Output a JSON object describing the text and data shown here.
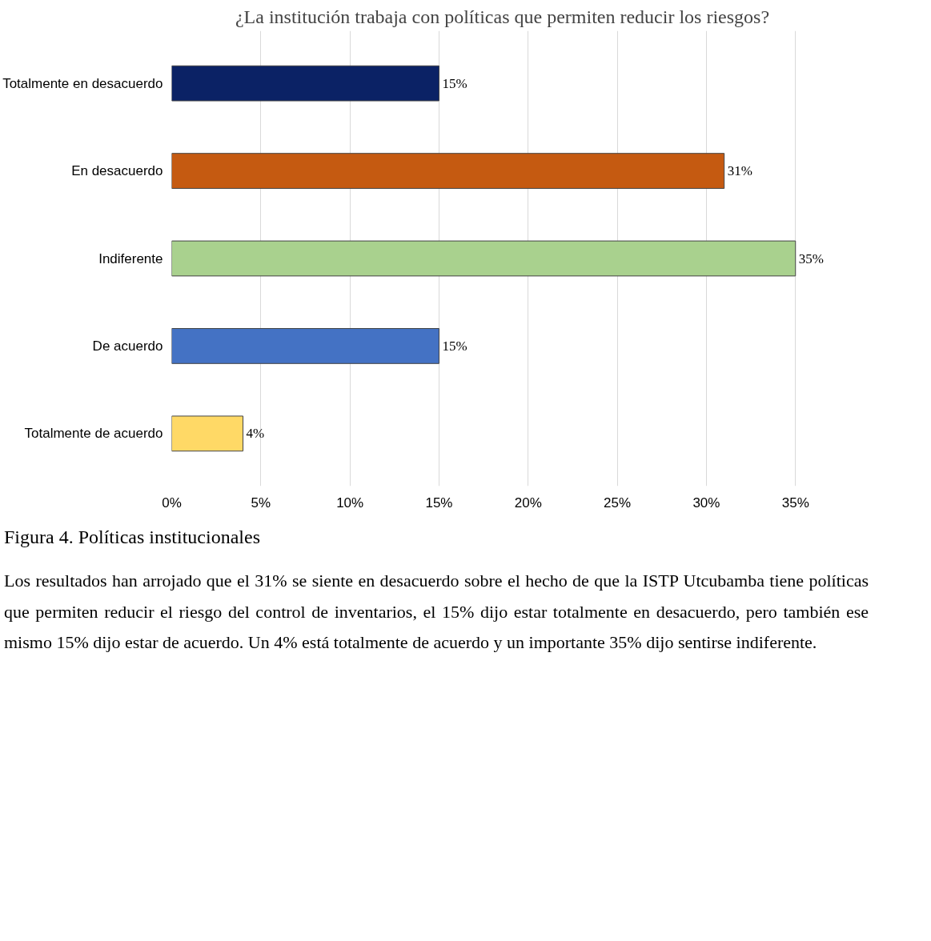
{
  "chart_data": {
    "type": "bar",
    "orientation": "horizontal",
    "title": "¿La institución trabaja con políticas que permiten reducir los riesgos?",
    "categories": [
      "Totalmente en desacuerdo",
      "En desacuerdo",
      "Indiferente",
      "De acuerdo",
      "Totalmente de acuerdo"
    ],
    "values": [
      15,
      31,
      35,
      15,
      4
    ],
    "colors": [
      "#0b2265",
      "#c55a11",
      "#a9d18e",
      "#4472c4",
      "#ffd966"
    ],
    "xlim": [
      0,
      35
    ],
    "xticks": [
      {
        "value": 0,
        "label": "0%"
      },
      {
        "value": 5,
        "label": "5%"
      },
      {
        "value": 10,
        "label": "10%"
      },
      {
        "value": 15,
        "label": "15%"
      },
      {
        "value": 20,
        "label": "20%"
      },
      {
        "value": 25,
        "label": "25%"
      },
      {
        "value": 30,
        "label": "30%"
      },
      {
        "value": 35,
        "label": "35%"
      }
    ],
    "value_labels": [
      "15%",
      "31%",
      "35%",
      "15%",
      "4%"
    ],
    "grid": "x",
    "annotations": [
      "Figura 4. Políticas institucionales",
      "Los resultados han arrojado que el 31% se siente en desacuerdo sobre el hecho de que la ISTP Utcubamba tiene políticas que permiten reducir el riesgo del control de inventarios, el 15% dijo estar totalmente en desacuerdo, pero también ese mismo 15% dijo estar de acuerdo. Un 4% está totalmente de acuerdo y un importante 35% dijo sentirse indiferente."
    ]
  }
}
